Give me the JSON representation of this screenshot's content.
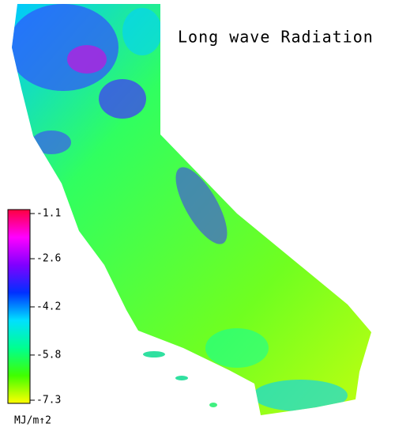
{
  "title": "Long wave Radiation",
  "colorbar": {
    "lim": [
      -7.3,
      -1.1
    ],
    "ticks": [
      -1.1,
      -2.6,
      -4.2,
      -5.8,
      -7.3
    ],
    "colors": [
      "#ffff00",
      "#40ff00",
      "#00ff90",
      "#00e0ff",
      "#0030ff",
      "#8000ff",
      "#ff00ff",
      "#ff0040"
    ],
    "unit": "MJ/m↑2"
  }
}
